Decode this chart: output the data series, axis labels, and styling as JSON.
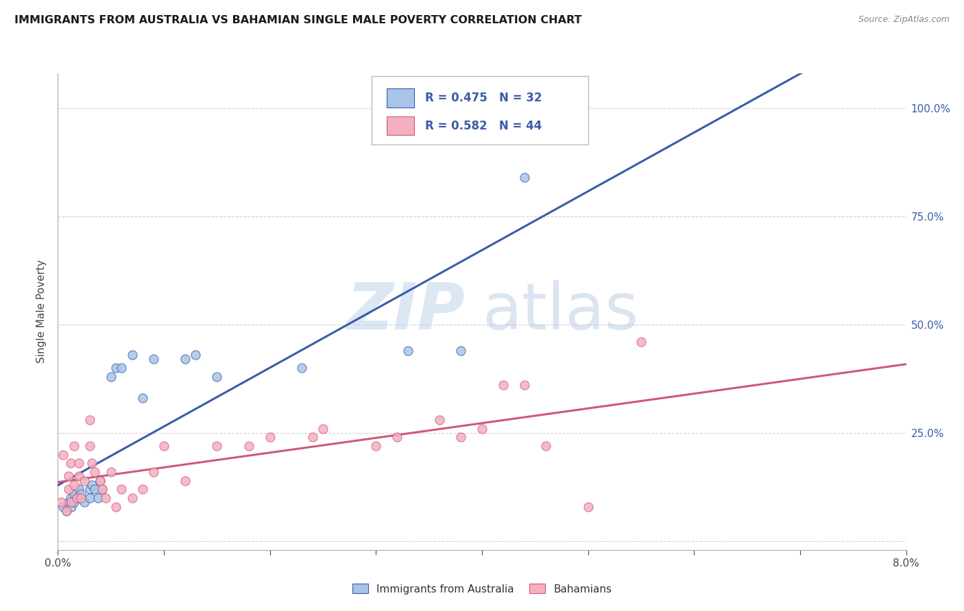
{
  "title": "IMMIGRANTS FROM AUSTRALIA VS BAHAMIAN SINGLE MALE POVERTY CORRELATION CHART",
  "source": "Source: ZipAtlas.com",
  "ylabel": "Single Male Poverty",
  "legend_label1": "Immigrants from Australia",
  "legend_label2": "Bahamians",
  "R1": 0.475,
  "N1": 32,
  "R2": 0.582,
  "N2": 44,
  "color1": "#a8c4e8",
  "color2": "#f4b0c0",
  "line_color1": "#3a5ca8",
  "line_color2": "#d05878",
  "watermark_zip": "ZIP",
  "watermark_atlas": "atlas",
  "xlim": [
    0.0,
    0.08
  ],
  "ylim": [
    -0.02,
    1.08
  ],
  "yticks": [
    0.0,
    0.25,
    0.5,
    0.75,
    1.0
  ],
  "ytick_labels": [
    "",
    "25.0%",
    "50.0%",
    "75.0%",
    "100.0%"
  ],
  "blue_x": [
    0.0005,
    0.0008,
    0.001,
    0.0012,
    0.0013,
    0.0015,
    0.0015,
    0.0018,
    0.002,
    0.002,
    0.0022,
    0.0025,
    0.003,
    0.003,
    0.0032,
    0.0035,
    0.0038,
    0.004,
    0.0042,
    0.005,
    0.0055,
    0.006,
    0.007,
    0.008,
    0.009,
    0.012,
    0.013,
    0.015,
    0.023,
    0.033,
    0.038,
    0.044
  ],
  "blue_y": [
    0.08,
    0.07,
    0.09,
    0.1,
    0.08,
    0.09,
    0.11,
    0.1,
    0.1,
    0.12,
    0.11,
    0.09,
    0.12,
    0.1,
    0.13,
    0.12,
    0.1,
    0.14,
    0.12,
    0.38,
    0.4,
    0.4,
    0.43,
    0.33,
    0.42,
    0.42,
    0.43,
    0.38,
    0.4,
    0.44,
    0.44,
    0.84
  ],
  "pink_x": [
    0.0003,
    0.0005,
    0.0008,
    0.001,
    0.001,
    0.0012,
    0.0013,
    0.0015,
    0.0015,
    0.0018,
    0.002,
    0.002,
    0.0022,
    0.0025,
    0.003,
    0.003,
    0.0032,
    0.0035,
    0.004,
    0.0042,
    0.0045,
    0.005,
    0.0055,
    0.006,
    0.007,
    0.008,
    0.009,
    0.01,
    0.012,
    0.015,
    0.018,
    0.02,
    0.024,
    0.025,
    0.03,
    0.032,
    0.036,
    0.038,
    0.04,
    0.042,
    0.044,
    0.046,
    0.05,
    0.055
  ],
  "pink_y": [
    0.09,
    0.2,
    0.07,
    0.12,
    0.15,
    0.18,
    0.09,
    0.22,
    0.13,
    0.1,
    0.15,
    0.18,
    0.1,
    0.14,
    0.28,
    0.22,
    0.18,
    0.16,
    0.14,
    0.12,
    0.1,
    0.16,
    0.08,
    0.12,
    0.1,
    0.12,
    0.16,
    0.22,
    0.14,
    0.22,
    0.22,
    0.24,
    0.24,
    0.26,
    0.22,
    0.24,
    0.28,
    0.24,
    0.26,
    0.36,
    0.36,
    0.22,
    0.08,
    0.46
  ]
}
